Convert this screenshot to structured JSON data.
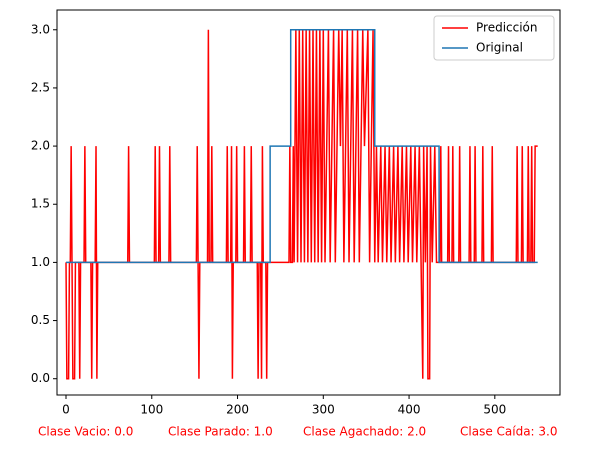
{
  "chart_data": {
    "type": "line",
    "xlim": [
      -10.5,
      576
    ],
    "ylim": [
      -0.14,
      3.17
    ],
    "xticks": [
      0,
      100,
      200,
      300,
      400,
      500
    ],
    "yticks": [
      {
        "value": 0,
        "label": "0.0"
      },
      0.5,
      {
        "value": 1,
        "label": "1.0"
      },
      1.5,
      {
        "value": 2,
        "label": "2.0"
      },
      2.5,
      {
        "value": 3,
        "label": "3.0"
      }
    ],
    "legend": "upper right",
    "annotations": [
      "Clase Vacio: 0.0",
      "Clase Parado: 1.0",
      "Clase Agachado: 2.0",
      "Clase Caída: 3.0"
    ],
    "annotation_color": "#ff0000",
    "series": [
      {
        "name": "Predicción",
        "color": "#ff0000",
        "x": [
          0,
          1,
          3,
          4,
          5,
          6,
          7,
          8,
          10,
          11,
          15,
          16,
          17,
          21,
          22,
          23,
          29,
          30,
          31,
          34,
          35,
          36,
          37,
          72,
          73,
          74,
          103,
          104,
          105,
          108,
          109,
          110,
          120,
          121,
          122,
          152,
          153,
          154,
          155,
          156,
          165,
          166,
          167,
          169,
          170,
          171,
          187,
          188,
          189,
          192,
          193,
          194,
          195,
          198,
          199,
          200,
          207,
          208,
          209,
          215,
          216,
          217,
          223,
          224,
          225,
          227,
          228,
          229,
          230,
          233,
          234,
          235,
          260,
          261,
          262,
          264,
          265,
          266,
          268,
          270,
          272,
          274,
          276,
          278,
          280,
          282,
          284,
          286,
          288,
          290,
          292,
          294,
          296,
          298,
          300,
          302,
          306,
          308,
          312,
          314,
          318,
          320,
          322,
          324,
          328,
          330,
          334,
          336,
          340,
          342,
          346,
          348,
          352,
          354,
          358,
          360,
          362,
          364,
          367,
          369,
          372,
          374,
          377,
          379,
          382,
          384,
          387,
          389,
          392,
          394,
          397,
          399,
          402,
          404,
          407,
          409,
          412,
          414,
          416,
          417,
          419,
          421,
          422,
          424,
          425,
          427,
          430,
          432,
          436,
          437,
          438,
          445,
          446,
          447,
          450,
          451,
          452,
          458,
          459,
          460,
          470,
          471,
          472,
          476,
          477,
          478,
          485,
          486,
          487,
          496,
          497,
          498,
          525,
          526,
          527,
          531,
          532,
          533,
          538,
          539,
          540,
          542,
          543,
          544,
          546,
          547,
          550
        ],
        "values": [
          1,
          0,
          0,
          1,
          1,
          2,
          1,
          0,
          0,
          1,
          1,
          0,
          1,
          1,
          2,
          1,
          1,
          0,
          1,
          1,
          2,
          0,
          1,
          1,
          2,
          1,
          1,
          2,
          1,
          1,
          2,
          1,
          1,
          2,
          1,
          1,
          2,
          1,
          0,
          1,
          1,
          3,
          1,
          1,
          2,
          1,
          1,
          2,
          1,
          1,
          2,
          0,
          1,
          1,
          2,
          1,
          1,
          2,
          1,
          1,
          2,
          1,
          1,
          0,
          1,
          1,
          0,
          2,
          1,
          1,
          0,
          1,
          1,
          2,
          1,
          1,
          2,
          1,
          3,
          1,
          3,
          1,
          3,
          1,
          3,
          1,
          3,
          1,
          3,
          1,
          3,
          1,
          3,
          1,
          3,
          1,
          3,
          1,
          3,
          1,
          3,
          2,
          3,
          1,
          3,
          1,
          3,
          1,
          3,
          1,
          3,
          2,
          3,
          1,
          3,
          1,
          2,
          1,
          2,
          1,
          2,
          1,
          2,
          1,
          2,
          1,
          2,
          1,
          2,
          1,
          2,
          1,
          2,
          1,
          2,
          1,
          2,
          1,
          0,
          2,
          1,
          2,
          0,
          0,
          2,
          1,
          2,
          1,
          1,
          2,
          1,
          1,
          2,
          1,
          1,
          2,
          1,
          1,
          2,
          1,
          1,
          2,
          1,
          1,
          2,
          1,
          1,
          2,
          1,
          1,
          2,
          1,
          1,
          2,
          1,
          1,
          2,
          1,
          1,
          2,
          1,
          1,
          2,
          1,
          1,
          2,
          2
        ]
      },
      {
        "name": "Original",
        "color": "#1f77b4",
        "x": [
          0,
          238,
          238,
          262,
          262,
          360,
          360,
          435,
          435,
          550
        ],
        "values": [
          1,
          1,
          2,
          2,
          3,
          3,
          2,
          2,
          1,
          1
        ]
      }
    ]
  }
}
